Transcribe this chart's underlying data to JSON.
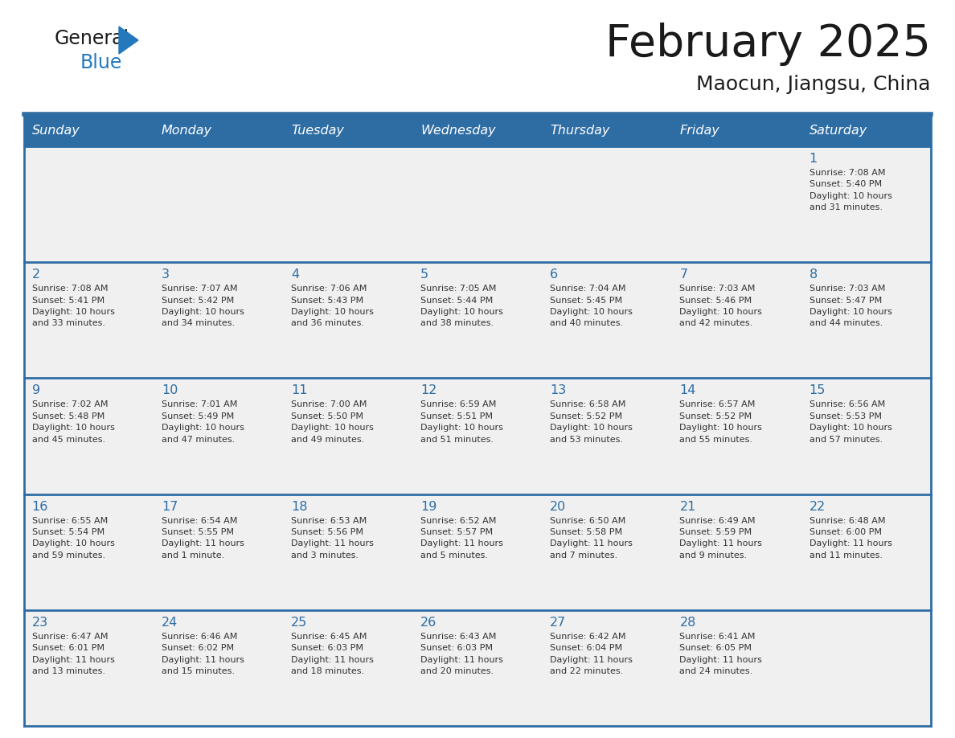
{
  "title": "February 2025",
  "subtitle": "Maocun, Jiangsu, China",
  "header_bg_color": "#2E6DA4",
  "header_text_color": "#FFFFFF",
  "cell_bg_color": "#F0F0F0",
  "cell_border_color": "#2E6DA4",
  "day_headers": [
    "Sunday",
    "Monday",
    "Tuesday",
    "Wednesday",
    "Thursday",
    "Friday",
    "Saturday"
  ],
  "title_color": "#1a1a1a",
  "subtitle_color": "#1a1a1a",
  "cell_text_color": "#333333",
  "day_num_color": "#2E6DA4",
  "logo_general_color": "#1a1a1a",
  "logo_blue_color": "#2479BD",
  "weeks": [
    [
      {
        "day": null,
        "info": null
      },
      {
        "day": null,
        "info": null
      },
      {
        "day": null,
        "info": null
      },
      {
        "day": null,
        "info": null
      },
      {
        "day": null,
        "info": null
      },
      {
        "day": null,
        "info": null
      },
      {
        "day": 1,
        "info": "Sunrise: 7:08 AM\nSunset: 5:40 PM\nDaylight: 10 hours\nand 31 minutes."
      }
    ],
    [
      {
        "day": 2,
        "info": "Sunrise: 7:08 AM\nSunset: 5:41 PM\nDaylight: 10 hours\nand 33 minutes."
      },
      {
        "day": 3,
        "info": "Sunrise: 7:07 AM\nSunset: 5:42 PM\nDaylight: 10 hours\nand 34 minutes."
      },
      {
        "day": 4,
        "info": "Sunrise: 7:06 AM\nSunset: 5:43 PM\nDaylight: 10 hours\nand 36 minutes."
      },
      {
        "day": 5,
        "info": "Sunrise: 7:05 AM\nSunset: 5:44 PM\nDaylight: 10 hours\nand 38 minutes."
      },
      {
        "day": 6,
        "info": "Sunrise: 7:04 AM\nSunset: 5:45 PM\nDaylight: 10 hours\nand 40 minutes."
      },
      {
        "day": 7,
        "info": "Sunrise: 7:03 AM\nSunset: 5:46 PM\nDaylight: 10 hours\nand 42 minutes."
      },
      {
        "day": 8,
        "info": "Sunrise: 7:03 AM\nSunset: 5:47 PM\nDaylight: 10 hours\nand 44 minutes."
      }
    ],
    [
      {
        "day": 9,
        "info": "Sunrise: 7:02 AM\nSunset: 5:48 PM\nDaylight: 10 hours\nand 45 minutes."
      },
      {
        "day": 10,
        "info": "Sunrise: 7:01 AM\nSunset: 5:49 PM\nDaylight: 10 hours\nand 47 minutes."
      },
      {
        "day": 11,
        "info": "Sunrise: 7:00 AM\nSunset: 5:50 PM\nDaylight: 10 hours\nand 49 minutes."
      },
      {
        "day": 12,
        "info": "Sunrise: 6:59 AM\nSunset: 5:51 PM\nDaylight: 10 hours\nand 51 minutes."
      },
      {
        "day": 13,
        "info": "Sunrise: 6:58 AM\nSunset: 5:52 PM\nDaylight: 10 hours\nand 53 minutes."
      },
      {
        "day": 14,
        "info": "Sunrise: 6:57 AM\nSunset: 5:52 PM\nDaylight: 10 hours\nand 55 minutes."
      },
      {
        "day": 15,
        "info": "Sunrise: 6:56 AM\nSunset: 5:53 PM\nDaylight: 10 hours\nand 57 minutes."
      }
    ],
    [
      {
        "day": 16,
        "info": "Sunrise: 6:55 AM\nSunset: 5:54 PM\nDaylight: 10 hours\nand 59 minutes."
      },
      {
        "day": 17,
        "info": "Sunrise: 6:54 AM\nSunset: 5:55 PM\nDaylight: 11 hours\nand 1 minute."
      },
      {
        "day": 18,
        "info": "Sunrise: 6:53 AM\nSunset: 5:56 PM\nDaylight: 11 hours\nand 3 minutes."
      },
      {
        "day": 19,
        "info": "Sunrise: 6:52 AM\nSunset: 5:57 PM\nDaylight: 11 hours\nand 5 minutes."
      },
      {
        "day": 20,
        "info": "Sunrise: 6:50 AM\nSunset: 5:58 PM\nDaylight: 11 hours\nand 7 minutes."
      },
      {
        "day": 21,
        "info": "Sunrise: 6:49 AM\nSunset: 5:59 PM\nDaylight: 11 hours\nand 9 minutes."
      },
      {
        "day": 22,
        "info": "Sunrise: 6:48 AM\nSunset: 6:00 PM\nDaylight: 11 hours\nand 11 minutes."
      }
    ],
    [
      {
        "day": 23,
        "info": "Sunrise: 6:47 AM\nSunset: 6:01 PM\nDaylight: 11 hours\nand 13 minutes."
      },
      {
        "day": 24,
        "info": "Sunrise: 6:46 AM\nSunset: 6:02 PM\nDaylight: 11 hours\nand 15 minutes."
      },
      {
        "day": 25,
        "info": "Sunrise: 6:45 AM\nSunset: 6:03 PM\nDaylight: 11 hours\nand 18 minutes."
      },
      {
        "day": 26,
        "info": "Sunrise: 6:43 AM\nSunset: 6:03 PM\nDaylight: 11 hours\nand 20 minutes."
      },
      {
        "day": 27,
        "info": "Sunrise: 6:42 AM\nSunset: 6:04 PM\nDaylight: 11 hours\nand 22 minutes."
      },
      {
        "day": 28,
        "info": "Sunrise: 6:41 AM\nSunset: 6:05 PM\nDaylight: 11 hours\nand 24 minutes."
      },
      {
        "day": null,
        "info": null
      }
    ]
  ]
}
